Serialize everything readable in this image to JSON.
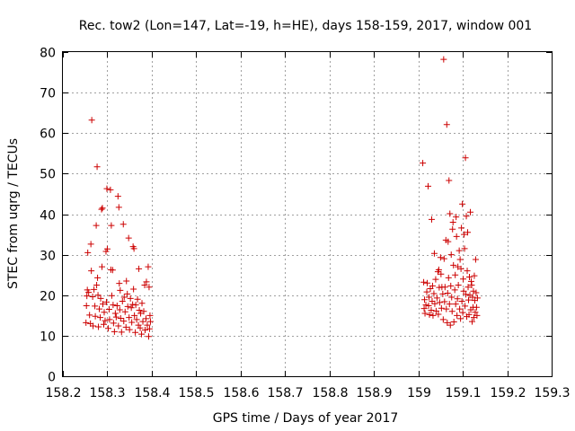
{
  "chart_data": {
    "type": "scatter",
    "title": "Rec. tow2 (Lon=147, Lat=-19, h=HE), days 158-159, 2017, window 001",
    "xlabel": "GPS time / Days of year 2017",
    "ylabel": "STEC from uqrg / TECUs",
    "xlim": [
      158.2,
      159.3
    ],
    "ylim": [
      0,
      80
    ],
    "xticks": [
      158.2,
      158.3,
      158.4,
      158.5,
      158.6,
      158.7,
      158.8,
      158.9,
      159,
      159.1,
      159.2,
      159.3
    ],
    "xtick_labels": [
      "158.2",
      "158.3",
      "158.4",
      "158.5",
      "158.6",
      "158.7",
      "158.8",
      "158.9",
      "159",
      "159.1",
      "159.2",
      "159.3"
    ],
    "yticks": [
      0,
      10,
      20,
      30,
      40,
      50,
      60,
      70,
      80
    ],
    "ytick_labels": [
      "0",
      "10",
      "20",
      "30",
      "40",
      "50",
      "60",
      "70",
      "80"
    ],
    "grid": true,
    "legend": false,
    "marker": "+",
    "color": "#cc0000",
    "series": [
      {
        "points": [
          [
            158.252,
            13.2
          ],
          [
            158.253,
            17.4
          ],
          [
            158.254,
            19.8
          ],
          [
            158.255,
            21.3
          ],
          [
            158.256,
            30.5
          ],
          [
            158.258,
            20.7
          ],
          [
            158.26,
            15.1
          ],
          [
            158.262,
            13.0
          ],
          [
            158.263,
            32.6
          ],
          [
            158.264,
            26.0
          ],
          [
            158.265,
            63.2
          ],
          [
            158.267,
            19.6
          ],
          [
            158.268,
            12.4
          ],
          [
            158.27,
            21.4
          ],
          [
            158.272,
            17.3
          ],
          [
            158.273,
            14.8
          ],
          [
            158.275,
            37.2
          ],
          [
            158.276,
            22.5
          ],
          [
            158.277,
            51.7
          ],
          [
            158.278,
            24.3
          ],
          [
            158.279,
            20.0
          ],
          [
            158.28,
            12.2
          ],
          [
            158.282,
            16.6
          ],
          [
            158.284,
            14.5
          ],
          [
            158.285,
            19.2
          ],
          [
            158.287,
            41.2
          ],
          [
            158.288,
            27.0
          ],
          [
            158.289,
            41.5
          ],
          [
            158.29,
            17.8
          ],
          [
            158.292,
            12.8
          ],
          [
            158.293,
            15.8
          ],
          [
            158.295,
            13.7
          ],
          [
            158.297,
            30.8
          ],
          [
            158.298,
            18.3
          ],
          [
            158.299,
            46.3
          ],
          [
            158.3,
            31.4
          ],
          [
            158.302,
            11.8
          ],
          [
            158.304,
            16.5
          ],
          [
            158.305,
            14.0
          ],
          [
            158.307,
            46.0
          ],
          [
            158.308,
            26.3
          ],
          [
            158.309,
            37.2
          ],
          [
            158.31,
            19.9
          ],
          [
            158.312,
            26.2
          ],
          [
            158.313,
            17.6
          ],
          [
            158.314,
            13.1
          ],
          [
            158.316,
            11.0
          ],
          [
            158.318,
            15.5
          ],
          [
            158.32,
            14.6
          ],
          [
            158.322,
            17.4
          ],
          [
            158.324,
            44.4
          ],
          [
            158.325,
            12.4
          ],
          [
            158.326,
            41.7
          ],
          [
            158.327,
            22.9
          ],
          [
            158.328,
            16.4
          ],
          [
            158.329,
            21.2
          ],
          [
            158.33,
            14.3
          ],
          [
            158.332,
            10.9
          ],
          [
            158.334,
            18.5
          ],
          [
            158.336,
            37.5
          ],
          [
            158.337,
            13.6
          ],
          [
            158.338,
            19.5
          ],
          [
            158.34,
            15.9
          ],
          [
            158.342,
            12.1
          ],
          [
            158.343,
            23.5
          ],
          [
            158.345,
            20.3
          ],
          [
            158.346,
            17.2
          ],
          [
            158.348,
            34.1
          ],
          [
            158.349,
            14.5
          ],
          [
            158.35,
            11.5
          ],
          [
            158.352,
            19.2
          ],
          [
            158.354,
            16.9
          ],
          [
            158.355,
            13.3
          ],
          [
            158.357,
            17.7
          ],
          [
            158.358,
            32.0
          ],
          [
            158.359,
            21.5
          ],
          [
            158.36,
            31.5
          ],
          [
            158.361,
            15.0
          ],
          [
            158.363,
            10.8
          ],
          [
            158.364,
            17.6
          ],
          [
            158.366,
            14.0
          ],
          [
            158.368,
            19.0
          ],
          [
            158.37,
            12.6
          ],
          [
            158.371,
            26.5
          ],
          [
            158.372,
            16.3
          ],
          [
            158.374,
            11.9
          ],
          [
            158.375,
            15.5
          ],
          [
            158.377,
            10.4
          ],
          [
            158.378,
            18.0
          ],
          [
            158.38,
            13.5
          ],
          [
            158.382,
            16.0
          ],
          [
            158.384,
            22.5
          ],
          [
            158.385,
            11.4
          ],
          [
            158.387,
            14.2
          ],
          [
            158.388,
            23.3
          ],
          [
            158.39,
            12.6
          ],
          [
            158.392,
            27.0
          ],
          [
            158.393,
            9.8
          ],
          [
            158.394,
            22.0
          ],
          [
            158.395,
            11.7
          ],
          [
            158.396,
            15.0
          ],
          [
            158.397,
            13.5
          ]
        ]
      },
      {
        "points": [
          [
            159.01,
            52.6
          ],
          [
            159.012,
            23.2
          ],
          [
            159.013,
            16.7
          ],
          [
            159.014,
            18.9
          ],
          [
            159.015,
            15.5
          ],
          [
            159.017,
            17.6
          ],
          [
            159.019,
            20.8
          ],
          [
            159.02,
            23.0
          ],
          [
            159.022,
            46.9
          ],
          [
            159.023,
            17.4
          ],
          [
            159.024,
            19.5
          ],
          [
            159.025,
            15.2
          ],
          [
            159.027,
            21.6
          ],
          [
            159.029,
            16.3
          ],
          [
            159.03,
            38.7
          ],
          [
            159.031,
            18.5
          ],
          [
            159.032,
            22.3
          ],
          [
            159.033,
            15.0
          ],
          [
            159.035,
            20.4
          ],
          [
            159.036,
            30.3
          ],
          [
            159.037,
            17.9
          ],
          [
            159.039,
            23.9
          ],
          [
            159.04,
            16.1
          ],
          [
            159.042,
            19.3
          ],
          [
            159.044,
            25.8
          ],
          [
            159.045,
            15.3
          ],
          [
            159.046,
            26.3
          ],
          [
            159.047,
            21.9
          ],
          [
            159.048,
            18.2
          ],
          [
            159.05,
            29.3
          ],
          [
            159.051,
            25.2
          ],
          [
            159.052,
            16.8
          ],
          [
            159.053,
            22.0
          ],
          [
            159.055,
            20.3
          ],
          [
            159.056,
            14.0
          ],
          [
            159.057,
            78.2
          ],
          [
            159.058,
            29.0
          ],
          [
            159.059,
            18.4
          ],
          [
            159.06,
            22.0
          ],
          [
            159.062,
            33.6
          ],
          [
            159.063,
            16.6
          ],
          [
            159.064,
            62.1
          ],
          [
            159.065,
            13.2
          ],
          [
            159.066,
            20.5
          ],
          [
            159.067,
            33.2
          ],
          [
            159.068,
            24.3
          ],
          [
            159.069,
            48.3
          ],
          [
            159.07,
            17.8
          ],
          [
            159.071,
            40.1
          ],
          [
            159.072,
            12.6
          ],
          [
            159.073,
            22.3
          ],
          [
            159.074,
            30.0
          ],
          [
            159.075,
            19.5
          ],
          [
            159.076,
            16.0
          ],
          [
            159.077,
            36.3
          ],
          [
            159.078,
            38.0
          ],
          [
            159.079,
            27.4
          ],
          [
            159.08,
            13.4
          ],
          [
            159.082,
            21.3
          ],
          [
            159.083,
            25.0
          ],
          [
            159.084,
            17.8
          ],
          [
            159.085,
            39.3
          ],
          [
            159.086,
            34.5
          ],
          [
            159.087,
            15.0
          ],
          [
            159.088,
            19.1
          ],
          [
            159.089,
            27.0
          ],
          [
            159.09,
            22.5
          ],
          [
            159.092,
            31.0
          ],
          [
            159.093,
            16.6
          ],
          [
            159.094,
            28.8
          ],
          [
            159.095,
            14.2
          ],
          [
            159.096,
            26.5
          ],
          [
            159.097,
            36.6
          ],
          [
            159.098,
            18.5
          ],
          [
            159.099,
            42.5
          ],
          [
            159.1,
            15.7
          ],
          [
            159.101,
            24.0
          ],
          [
            159.102,
            21.0
          ],
          [
            159.103,
            35.0
          ],
          [
            159.104,
            31.5
          ],
          [
            159.105,
            17.3
          ],
          [
            159.106,
            53.9
          ],
          [
            159.107,
            20.2
          ],
          [
            159.108,
            39.5
          ],
          [
            159.109,
            14.7
          ],
          [
            159.11,
            26.0
          ],
          [
            159.111,
            35.5
          ],
          [
            159.112,
            22.0
          ],
          [
            159.113,
            18.8
          ],
          [
            159.114,
            15.2
          ],
          [
            159.115,
            24.5
          ],
          [
            159.116,
            20.0
          ],
          [
            159.117,
            40.5
          ],
          [
            159.118,
            16.4
          ],
          [
            159.119,
            23.4
          ],
          [
            159.12,
            22.5
          ],
          [
            159.121,
            13.5
          ],
          [
            159.122,
            19.5
          ],
          [
            159.123,
            17.0
          ],
          [
            159.124,
            21.0
          ],
          [
            159.125,
            14.5
          ],
          [
            159.126,
            24.8
          ],
          [
            159.127,
            18.7
          ],
          [
            159.128,
            15.8
          ],
          [
            159.129,
            28.8
          ],
          [
            159.13,
            20.6
          ],
          [
            159.131,
            17.0
          ],
          [
            159.132,
            15.0
          ],
          [
            159.133,
            19.3
          ]
        ]
      }
    ]
  }
}
